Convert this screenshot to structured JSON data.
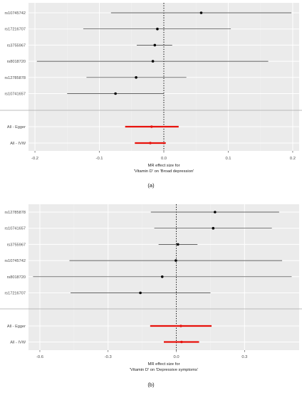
{
  "chart_data": [
    {
      "type": "forest",
      "panel_label": "(a)",
      "xlabel_line1": "MR effect size for",
      "xlabel_line2": "'Vitamin D' on 'Broad depression'",
      "xlim": [
        -0.21,
        0.21
      ],
      "xticks": [
        -0.2,
        -0.1,
        0.0,
        0.1,
        0.2
      ],
      "xtick_labels": [
        "-0.2",
        "-0.1",
        "0.0",
        "0.1",
        "0.2"
      ],
      "reference_line_x": 0,
      "rows": [
        {
          "label": "rs10745742",
          "est": 0.058,
          "lo": -0.082,
          "hi": 0.198,
          "type": "snp"
        },
        {
          "label": "rs17216707",
          "est": -0.01,
          "lo": -0.125,
          "hi": 0.104,
          "type": "snp"
        },
        {
          "label": "rs3755967",
          "est": -0.014,
          "lo": -0.042,
          "hi": 0.013,
          "type": "snp"
        },
        {
          "label": "rs8018720",
          "est": -0.017,
          "lo": -0.197,
          "hi": 0.162,
          "type": "snp"
        },
        {
          "label": "rs12785878",
          "est": -0.043,
          "lo": -0.12,
          "hi": 0.035,
          "type": "snp"
        },
        {
          "label": "rs10741657",
          "est": -0.075,
          "lo": -0.15,
          "hi": 0.0,
          "type": "snp"
        },
        {
          "label": "All - Egger",
          "est": -0.019,
          "lo": -0.06,
          "hi": 0.023,
          "type": "summary"
        },
        {
          "label": "All - IVW",
          "est": -0.021,
          "lo": -0.045,
          "hi": 0.003,
          "type": "summary"
        }
      ],
      "colors": {
        "panel": "#ebebeb",
        "grid_major": "#ffffff",
        "grid_minor": "#f3f3f3",
        "snp": "#000000",
        "summary": "#e8120c"
      }
    },
    {
      "type": "forest",
      "panel_label": "(b)",
      "xlabel_line1": "MR effect size for",
      "xlabel_line2": "'Vitamin D' on 'Depressive symptoms'",
      "xlim": [
        -0.65,
        0.54
      ],
      "xticks": [
        -0.6,
        -0.3,
        0.0,
        0.3
      ],
      "xtick_labels": [
        "-0.6",
        "-0.3",
        "0.0",
        "0.3"
      ],
      "reference_line_x": 0,
      "rows": [
        {
          "label": "rs12785878",
          "est": 0.17,
          "lo": -0.112,
          "hi": 0.452,
          "type": "snp"
        },
        {
          "label": "rs10741657",
          "est": 0.162,
          "lo": -0.097,
          "hi": 0.42,
          "type": "snp"
        },
        {
          "label": "rs3755967",
          "est": 0.007,
          "lo": -0.078,
          "hi": 0.093,
          "type": "snp"
        },
        {
          "label": "rs10745742",
          "est": -0.002,
          "lo": -0.47,
          "hi": 0.465,
          "type": "snp"
        },
        {
          "label": "rs8018720",
          "est": -0.062,
          "lo": -0.63,
          "hi": 0.507,
          "type": "snp"
        },
        {
          "label": "rs17216707",
          "est": -0.158,
          "lo": -0.465,
          "hi": 0.15,
          "type": "snp"
        },
        {
          "label": "All - Egger",
          "est": 0.02,
          "lo": -0.115,
          "hi": 0.155,
          "type": "summary"
        },
        {
          "label": "All - IVW",
          "est": 0.023,
          "lo": -0.055,
          "hi": 0.1,
          "type": "summary"
        }
      ],
      "colors": {
        "panel": "#ebebeb",
        "grid_major": "#ffffff",
        "grid_minor": "#f3f3f3",
        "snp": "#000000",
        "summary": "#e8120c"
      }
    }
  ]
}
